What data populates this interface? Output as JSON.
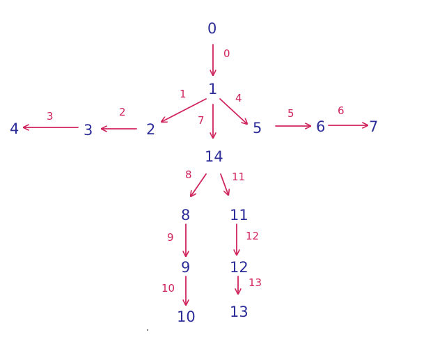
{
  "diagram": {
    "colors": {
      "node": "#2e2e9a",
      "edge": "#d0245c"
    },
    "nodes": [
      {
        "id": "n0",
        "label": "0"
      },
      {
        "id": "n1",
        "label": "1"
      },
      {
        "id": "n2",
        "label": "2"
      },
      {
        "id": "n3",
        "label": "3"
      },
      {
        "id": "n4",
        "label": "4"
      },
      {
        "id": "n5",
        "label": "5"
      },
      {
        "id": "n6",
        "label": "6"
      },
      {
        "id": "n7",
        "label": "7"
      },
      {
        "id": "n14",
        "label": "14"
      },
      {
        "id": "n8",
        "label": "8"
      },
      {
        "id": "n11",
        "label": "11"
      },
      {
        "id": "n9",
        "label": "9"
      },
      {
        "id": "n12",
        "label": "12"
      },
      {
        "id": "n10",
        "label": "10"
      },
      {
        "id": "n13",
        "label": "13"
      }
    ],
    "edges": [
      {
        "id": "e0",
        "from": "0",
        "to": "1",
        "label": "0"
      },
      {
        "id": "e1",
        "from": "1",
        "to": "2",
        "label": "1"
      },
      {
        "id": "e2",
        "from": "2",
        "to": "3",
        "label": "2"
      },
      {
        "id": "e3",
        "from": "3",
        "to": "4",
        "label": "3"
      },
      {
        "id": "e4",
        "from": "1",
        "to": "5",
        "label": "4"
      },
      {
        "id": "e5",
        "from": "5",
        "to": "6",
        "label": "5"
      },
      {
        "id": "e6",
        "from": "6",
        "to": "7",
        "label": "6"
      },
      {
        "id": "e7",
        "from": "1",
        "to": "14",
        "label": "7"
      },
      {
        "id": "e8",
        "from": "14",
        "to": "8",
        "label": "8"
      },
      {
        "id": "e9",
        "from": "8",
        "to": "9",
        "label": "9"
      },
      {
        "id": "e10",
        "from": "9",
        "to": "10",
        "label": "10"
      },
      {
        "id": "e11",
        "from": "14",
        "to": "11",
        "label": "11"
      },
      {
        "id": "e12",
        "from": "11",
        "to": "12",
        "label": "12"
      },
      {
        "id": "e13",
        "from": "12",
        "to": "13",
        "label": "13"
      }
    ]
  }
}
